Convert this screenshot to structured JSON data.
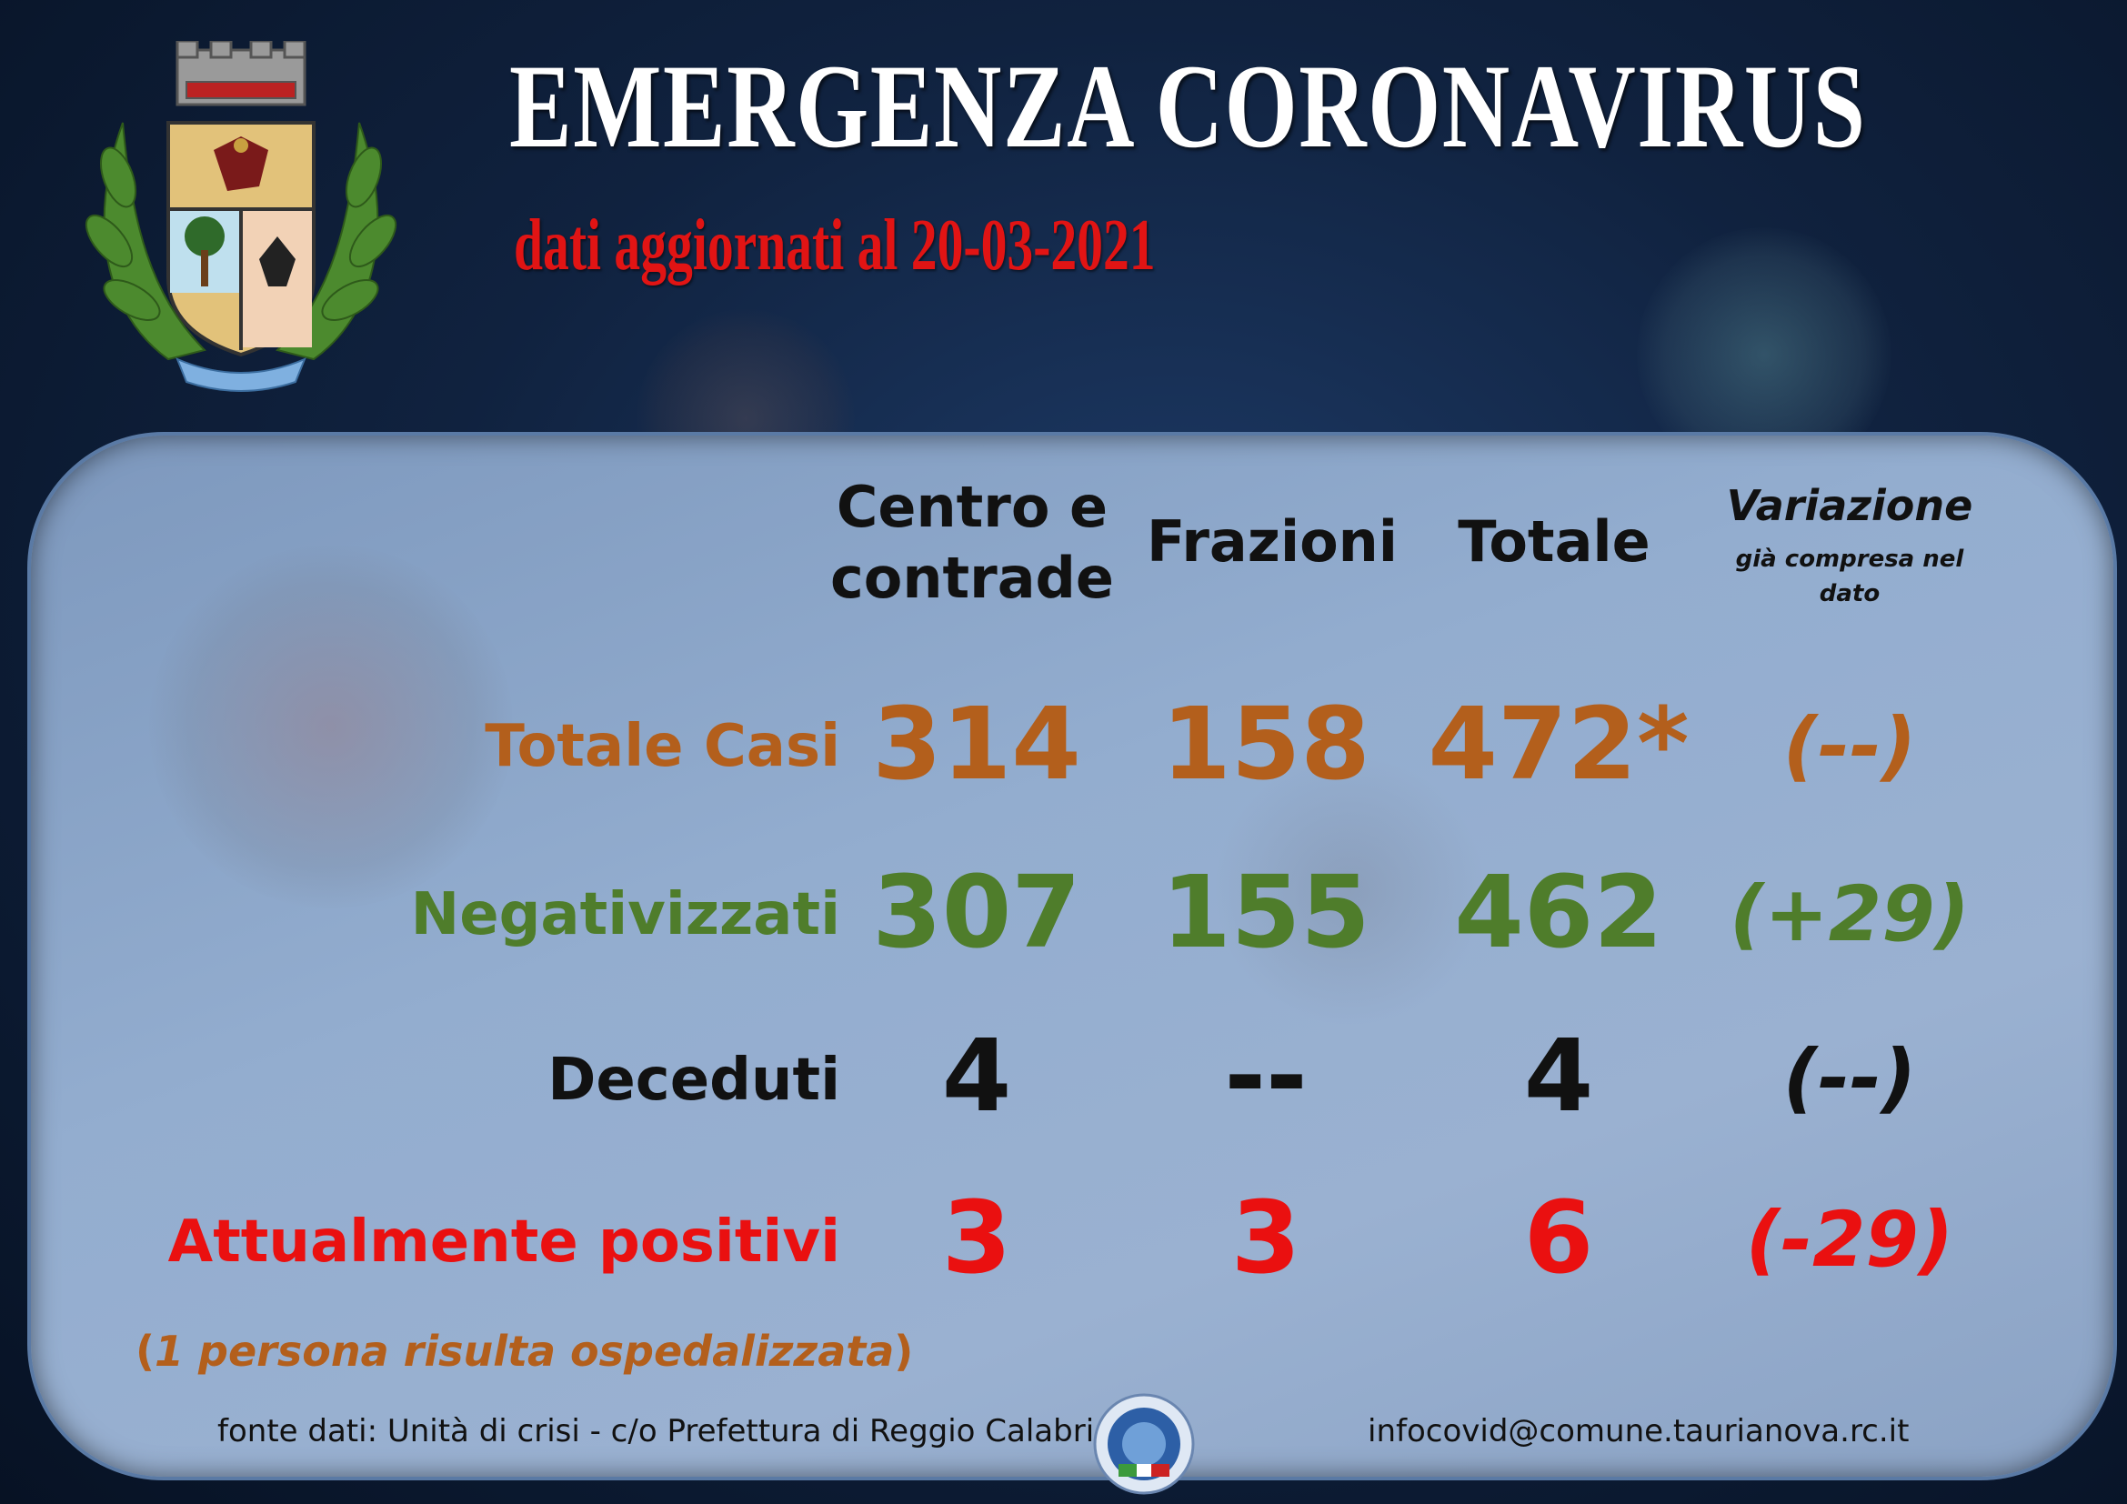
{
  "header": {
    "title": "EMERGENZA CORONAVIRUS",
    "subtitle": "dati aggiornati al 20-03-2021"
  },
  "table": {
    "columns": {
      "centro_line1": "Centro e",
      "centro_line2": "contrade",
      "frazioni": "Frazioni",
      "totale": "Totale",
      "variazione": "Variazione",
      "variazione_note_line1": "già compresa nel",
      "variazione_note_line2": "dato"
    },
    "rows": [
      {
        "label": "Totale Casi",
        "centro": "314",
        "frazioni": "158",
        "totale": "472*",
        "variazione": "(--)",
        "color": "#b35f1c"
      },
      {
        "label": "Negativizzati",
        "centro": "307",
        "frazioni": "155",
        "totale": "462",
        "variazione": "(+29)",
        "color": "#4f7d2b"
      },
      {
        "label": "Deceduti",
        "centro": "4",
        "frazioni": "--",
        "totale": "4",
        "variazione": "(--)",
        "color": "#111111"
      },
      {
        "label": "Attualmente positivi",
        "centro": "3",
        "frazioni": "3",
        "totale": "6",
        "variazione": "(-29)",
        "color": "#ea1010"
      }
    ]
  },
  "note": {
    "open": "(",
    "text": "1 persona risulta ospedalizzata",
    "close": ")"
  },
  "footer": {
    "source": "fonte dati: Unità di crisi - c/o Prefettura di Reggio Calabria",
    "email": "infocovid@comune.taurianova.rc.it"
  },
  "icons": {
    "crest": "municipal-coat-of-arms-icon",
    "seal": "prefecture-seal-icon"
  }
}
